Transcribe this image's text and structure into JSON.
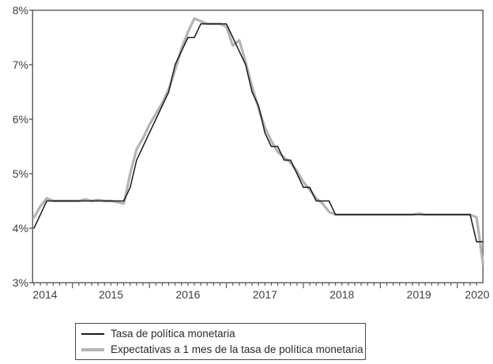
{
  "figure": {
    "background": "#ffffff",
    "frame_color": "#5a5a5a",
    "tick_color": "#5a5a5a",
    "label_color": "#3f3f3f"
  },
  "y_axis": {
    "min": 3,
    "max": 8,
    "step": 1,
    "tick_labels": [
      "8%",
      "7%",
      "6%",
      "5%",
      "4%",
      "3%"
    ]
  },
  "x_axis": {
    "year_labels": [
      "2014",
      "2015",
      "2016",
      "2017",
      "2018",
      "2019",
      "2020"
    ],
    "minor_tick_unit": "month"
  },
  "legend": {
    "items": [
      {
        "label": "Tasa de política monetaria",
        "color": "#1a1a1a",
        "thickness": 2
      },
      {
        "label": "Expectativas a 1 mes de la tasa de política monetaria",
        "color": "#b3b3b3",
        "thickness": 4
      }
    ]
  },
  "chart_data": {
    "type": "line",
    "title": "",
    "xlabel": "",
    "ylabel": "",
    "ylim": [
      3,
      8
    ],
    "y_unit": "percent",
    "grid": false,
    "legend_position": "bottom",
    "x": [
      "2014-06",
      "2014-07",
      "2014-08",
      "2014-09",
      "2014-10",
      "2014-11",
      "2014-12",
      "2015-01",
      "2015-02",
      "2015-03",
      "2015-04",
      "2015-05",
      "2015-06",
      "2015-07",
      "2015-08",
      "2015-09",
      "2015-10",
      "2015-11",
      "2015-12",
      "2016-01",
      "2016-02",
      "2016-03",
      "2016-04",
      "2016-05",
      "2016-06",
      "2016-07",
      "2016-08",
      "2016-09",
      "2016-10",
      "2016-11",
      "2016-12",
      "2017-01",
      "2017-02",
      "2017-03",
      "2017-04",
      "2017-05",
      "2017-06",
      "2017-07",
      "2017-08",
      "2017-09",
      "2017-10",
      "2017-11",
      "2017-12",
      "2018-01",
      "2018-02",
      "2018-03",
      "2018-04",
      "2018-05",
      "2018-06",
      "2018-07",
      "2018-08",
      "2018-09",
      "2018-10",
      "2018-11",
      "2018-12",
      "2019-01",
      "2019-02",
      "2019-03",
      "2019-04",
      "2019-05",
      "2019-06",
      "2019-07",
      "2019-08",
      "2019-09",
      "2019-10",
      "2019-11",
      "2019-12",
      "2020-01",
      "2020-02",
      "2020-03",
      "2020-04"
    ],
    "series": [
      {
        "name": "Tasa de política monetaria",
        "color": "#1a1a1a",
        "width": 1.5,
        "values": [
          4.0,
          4.25,
          4.5,
          4.5,
          4.5,
          4.5,
          4.5,
          4.5,
          4.5,
          4.5,
          4.5,
          4.5,
          4.5,
          4.5,
          4.5,
          4.75,
          5.25,
          5.5,
          5.75,
          6.0,
          6.25,
          6.5,
          7.0,
          7.25,
          7.5,
          7.5,
          7.75,
          7.75,
          7.75,
          7.75,
          7.75,
          7.5,
          7.25,
          7.0,
          6.5,
          6.25,
          5.75,
          5.5,
          5.5,
          5.25,
          5.25,
          5.0,
          4.75,
          4.75,
          4.5,
          4.5,
          4.5,
          4.25,
          4.25,
          4.25,
          4.25,
          4.25,
          4.25,
          4.25,
          4.25,
          4.25,
          4.25,
          4.25,
          4.25,
          4.25,
          4.25,
          4.25,
          4.25,
          4.25,
          4.25,
          4.25,
          4.25,
          4.25,
          4.25,
          3.75,
          3.75
        ]
      },
      {
        "name": "Expectativas a 1 mes de la tasa de política monetaria",
        "color": "#b3b3b3",
        "width": 3.2,
        "values": [
          4.2,
          4.4,
          4.55,
          4.5,
          4.5,
          4.5,
          4.5,
          4.5,
          4.53,
          4.5,
          4.52,
          4.5,
          4.5,
          4.48,
          4.45,
          5.0,
          5.45,
          5.65,
          5.9,
          6.1,
          6.3,
          6.55,
          6.9,
          7.3,
          7.6,
          7.85,
          7.8,
          7.75,
          7.75,
          7.75,
          7.7,
          7.35,
          7.45,
          7.05,
          6.6,
          6.2,
          5.85,
          5.6,
          5.4,
          5.3,
          5.2,
          5.05,
          4.85,
          4.7,
          4.55,
          4.45,
          4.3,
          4.25,
          4.25,
          4.25,
          4.25,
          4.25,
          4.25,
          4.25,
          4.25,
          4.25,
          4.25,
          4.25,
          4.25,
          4.25,
          4.27,
          4.25,
          4.25,
          4.25,
          4.25,
          4.25,
          4.25,
          4.25,
          4.25,
          4.2,
          3.35
        ]
      }
    ]
  }
}
